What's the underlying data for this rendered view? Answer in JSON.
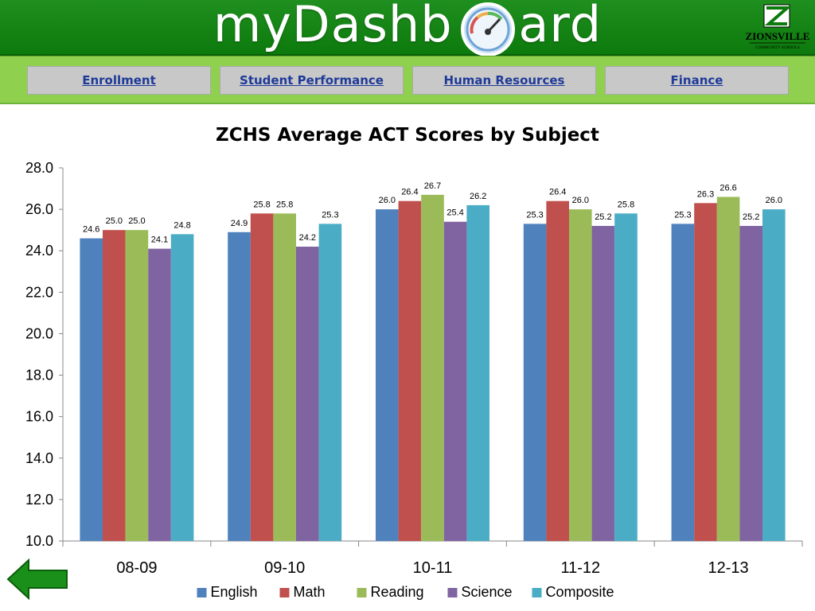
{
  "header": {
    "brand_text": "myDashb    ard",
    "logo_text": "ZIONSVILLE",
    "logo_subtext": "COMMUNITY SCHOOLS"
  },
  "nav": {
    "items": [
      {
        "label": "Enrollment"
      },
      {
        "label": "Student Performance"
      },
      {
        "label": "Human Resources"
      },
      {
        "label": "Finance"
      }
    ]
  },
  "colors": {
    "header_green": "#1a8a1a",
    "nav_green": "#8fd14f",
    "link_blue": "#1f3a99",
    "back_arrow": "#1a8f1a"
  },
  "chart_data": {
    "type": "bar",
    "title": "ZCHS Average ACT Scores by Subject",
    "categories": [
      "08-09",
      "09-10",
      "10-11",
      "11-12",
      "12-13"
    ],
    "series": [
      {
        "name": "English",
        "color": "#4f81bd",
        "values": [
          24.6,
          24.9,
          26.0,
          25.3,
          25.3
        ]
      },
      {
        "name": "Math",
        "color": "#c0504d",
        "values": [
          25.0,
          25.8,
          26.4,
          26.4,
          26.3
        ]
      },
      {
        "name": "Reading",
        "color": "#9bbb59",
        "values": [
          25.0,
          25.8,
          26.7,
          26.0,
          26.6
        ]
      },
      {
        "name": "Science",
        "color": "#8064a2",
        "values": [
          24.1,
          24.2,
          25.4,
          25.2,
          25.2
        ]
      },
      {
        "name": "Composite",
        "color": "#4bacc6",
        "values": [
          24.8,
          25.3,
          26.2,
          25.8,
          26.0
        ]
      }
    ],
    "ylim": [
      10.0,
      28.0
    ],
    "yticks": [
      "10.0",
      "12.0",
      "14.0",
      "16.0",
      "18.0",
      "20.0",
      "22.0",
      "24.0",
      "26.0",
      "28.0"
    ],
    "data_labels": true,
    "grid": false,
    "legend_position": "bottom"
  }
}
